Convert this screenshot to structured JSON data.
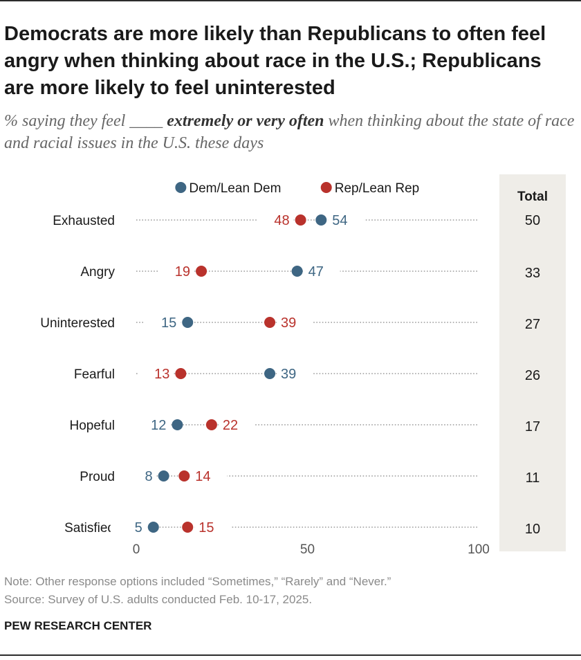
{
  "title": "Democrats are more likely than Republicans to often feel angry when thinking about race in the U.S.; Republicans are more likely to feel uninterested",
  "subtitle": {
    "prefix": "% saying they feel ____ ",
    "emphasis": "extremely or very often",
    "suffix": " when thinking about the state of race and racial issues in the U.S. these days"
  },
  "colors": {
    "dem": "#3e6683",
    "rep": "#b9322c",
    "total_panel": "#efede8",
    "dots_line": "#9a9a9a",
    "label": "#1a1a1a",
    "axis": "#555555"
  },
  "chart_data": {
    "type": "dot",
    "categories": [
      "Exhausted",
      "Angry",
      "Uninterested",
      "Fearful",
      "Hopeful",
      "Proud",
      "Satisfied"
    ],
    "series": [
      {
        "name": "Dem/Lean Dem",
        "values": [
          54,
          47,
          15,
          39,
          12,
          8,
          5
        ]
      },
      {
        "name": "Rep/Lean Rep",
        "values": [
          48,
          19,
          39,
          13,
          22,
          14,
          15
        ]
      }
    ],
    "total": {
      "header": "Total",
      "values": [
        50,
        33,
        27,
        26,
        17,
        11,
        10
      ]
    },
    "xlim": [
      0,
      100
    ],
    "xticks": [
      0,
      50,
      100
    ],
    "legend": [
      "Dem/Lean Dem",
      "Rep/Lean Rep"
    ]
  },
  "footer": {
    "note": "Note: Other response options included “Sometimes,” “Rarely” and “Never.”",
    "source": "Source: Survey of U.S. adults conducted Feb. 10-17, 2025.",
    "brand": "PEW RESEARCH CENTER"
  }
}
